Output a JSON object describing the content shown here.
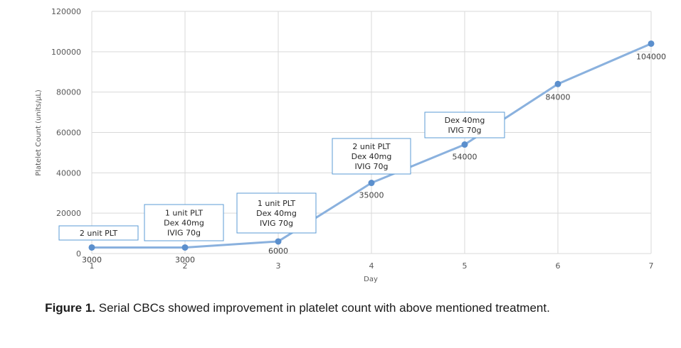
{
  "chart_data": {
    "type": "line",
    "title": "",
    "xlabel": "Day",
    "ylabel": "Platelet Count (units/μL)",
    "x": [
      1,
      2,
      3,
      4,
      5,
      6,
      7
    ],
    "x_tick_labels": [
      "1",
      "2",
      "3",
      "4",
      "5",
      "6",
      "7"
    ],
    "xlim": [
      1,
      7
    ],
    "ylim": [
      0,
      120000
    ],
    "y_ticks": [
      0,
      20000,
      40000,
      60000,
      80000,
      100000,
      120000
    ],
    "y_tick_labels": [
      "0",
      "20000",
      "40000",
      "60000",
      "80000",
      "100000",
      "120000"
    ],
    "grid": true,
    "legend": "none",
    "series": [
      {
        "values": [
          3000,
          3000,
          6000,
          35000,
          54000,
          84000,
          104000
        ],
        "data_labels": [
          "3000",
          "3000",
          "6000",
          "35000",
          "54000",
          "84000",
          "104000"
        ],
        "color": "#8ab1de"
      }
    ],
    "annotations": [
      {
        "x": 1,
        "lines": [
          "2 unit PLT"
        ]
      },
      {
        "x": 2,
        "lines": [
          "1 unit PLT",
          "Dex 40mg",
          "IVIG 70g"
        ]
      },
      {
        "x": 3,
        "lines": [
          "1 unit PLT",
          "Dex 40mg",
          "IVIG 70g"
        ]
      },
      {
        "x": 4,
        "lines": [
          "2 unit PLT",
          "Dex 40mg",
          "IVIG 70g"
        ]
      },
      {
        "x": 5,
        "lines": [
          "Dex 40mg",
          "IVIG 70g"
        ]
      }
    ]
  },
  "caption": {
    "label": "Figure 1.",
    "text": " Serial CBCs showed improvement in platelet count with above mentioned treatment."
  },
  "colors": {
    "line": "#8ab1de",
    "marker": "#5b8fcd",
    "grid": "#d9d9d9",
    "annotation_border": "#5b9bd5"
  }
}
